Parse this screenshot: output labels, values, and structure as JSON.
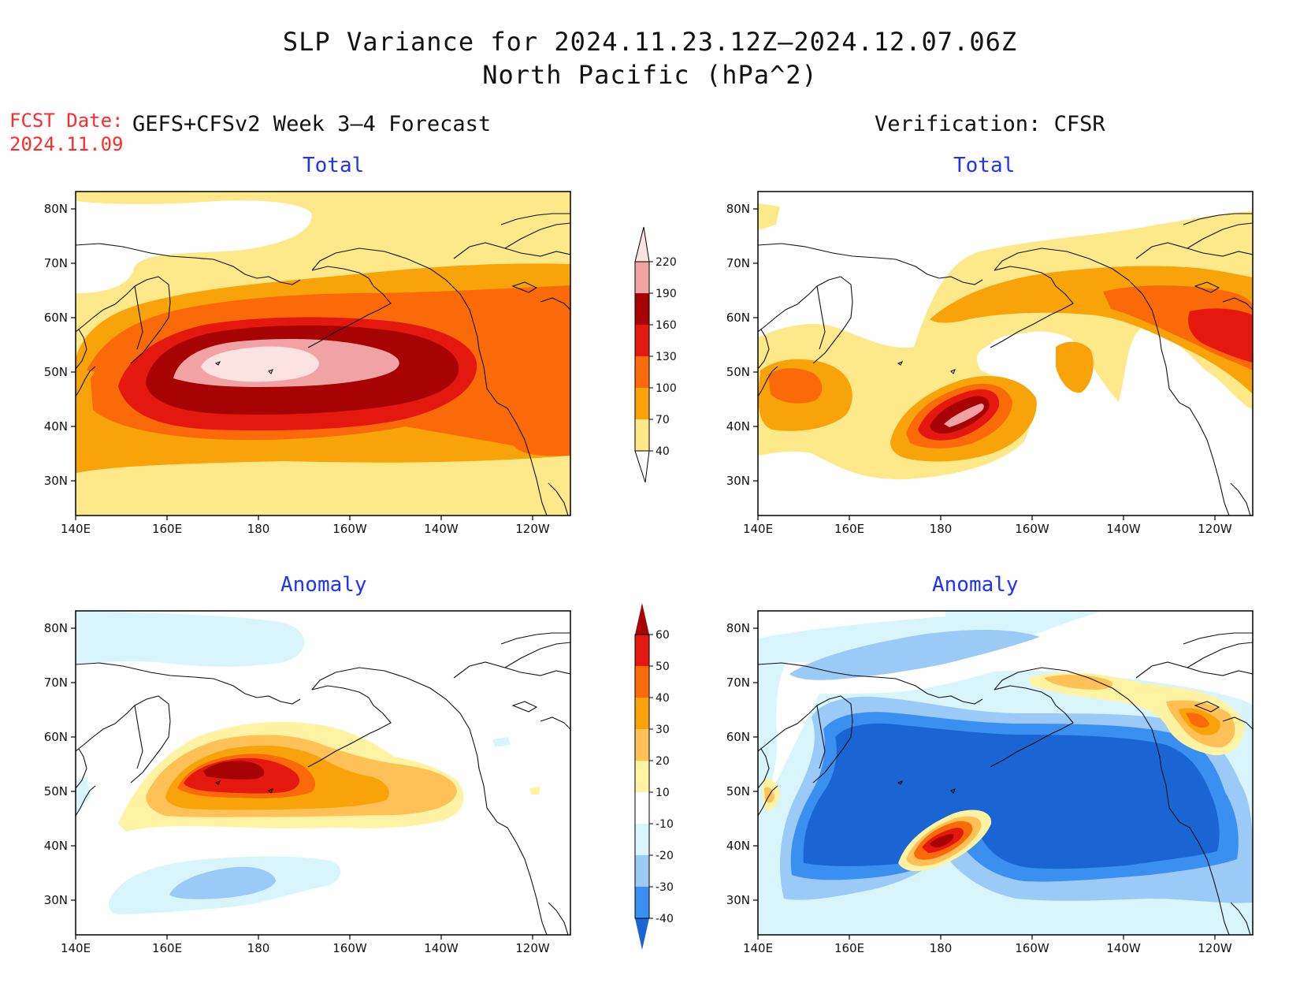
{
  "title_line1": "SLP Variance for 2024.11.23.12Z–2024.12.07.06Z",
  "title_line2": "North Pacific (hPa^2)",
  "fcst_label": "FCST Date:",
  "fcst_date": "2024.11.09",
  "left_header": "GEFS+CFSv2 Week 3–4 Forecast",
  "right_header": "Verification: CFSR",
  "panels": {
    "tl": "Total",
    "tr": "Total",
    "bl": "Anomaly",
    "br": "Anomaly"
  },
  "axes": {
    "lat_labels": [
      "80N",
      "70N",
      "60N",
      "50N",
      "40N",
      "30N"
    ],
    "lon_labels": [
      "140E",
      "160E",
      "180",
      "160W",
      "140W",
      "120W"
    ]
  },
  "colorbar_total": {
    "labels": [
      "40",
      "70",
      "100",
      "130",
      "160",
      "190",
      "220"
    ],
    "colors": [
      "#fde98a",
      "#f9a30b",
      "#fb6a08",
      "#e3180f",
      "#a70204",
      "#f1a3a3",
      "#fde2e2"
    ]
  },
  "colorbar_anomaly": {
    "labels": [
      "-40",
      "-30",
      "-20",
      "-10",
      "10",
      "20",
      "30",
      "40",
      "50",
      "60"
    ],
    "colors": [
      "#1a64d4",
      "#3a8ff0",
      "#9ccaf6",
      "#d8f5fc",
      "#ffffff",
      "#fdf3a3",
      "#fdc157",
      "#f9a30b",
      "#fb6a08",
      "#e3180f",
      "#a70204"
    ]
  }
}
